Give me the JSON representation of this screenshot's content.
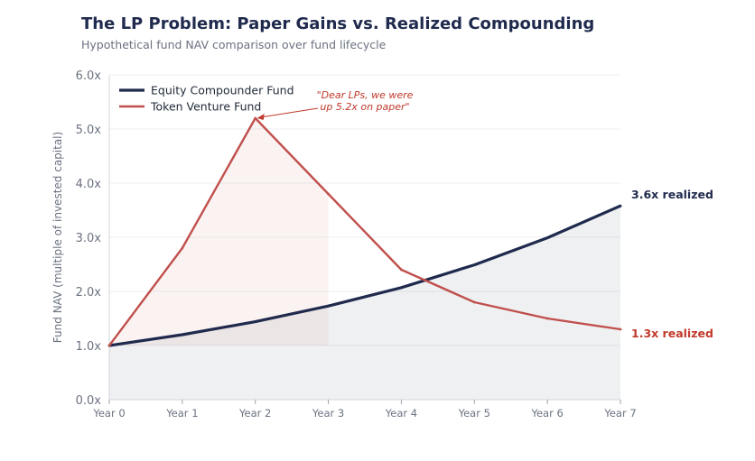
{
  "chart_data": {
    "type": "line",
    "title": "The LP Problem: Paper Gains vs. Realized Compounding",
    "subtitle": "Hypothetical fund NAV comparison over fund lifecycle",
    "xlabel": "",
    "ylabel": "Fund NAV (multiple of invested capital)",
    "categories": [
      "Year 0",
      "Year 1",
      "Year 2",
      "Year 3",
      "Year 4",
      "Year 5",
      "Year 6",
      "Year 7"
    ],
    "ylim": [
      0,
      6
    ],
    "yticks": [
      0,
      1,
      2,
      3,
      4,
      5,
      6
    ],
    "ytick_labels": [
      "0.0x",
      "1.0x",
      "2.0x",
      "3.0x",
      "4.0x",
      "5.0x",
      "6.0x"
    ],
    "grid": true,
    "legend_position": "top-left",
    "series": [
      {
        "name": "Equity Compounder Fund",
        "color": "#1f2a4d",
        "values": [
          1.0,
          1.2,
          1.44,
          1.73,
          2.07,
          2.49,
          2.99,
          3.58
        ],
        "end_label": "3.6x realized"
      },
      {
        "name": "Token Venture Fund",
        "color": "#c0504d",
        "values": [
          1.0,
          2.8,
          5.2,
          3.8,
          2.4,
          1.8,
          1.5,
          1.3
        ],
        "end_label": "1.3x realized"
      }
    ],
    "annotation": {
      "line1": "\"Dear LPs, we were",
      "line2": "up 5.2x on paper\"",
      "series_index": 1,
      "point_index": 2
    },
    "shaded_paper_region": {
      "from_index": 0,
      "to_index": 3
    }
  }
}
